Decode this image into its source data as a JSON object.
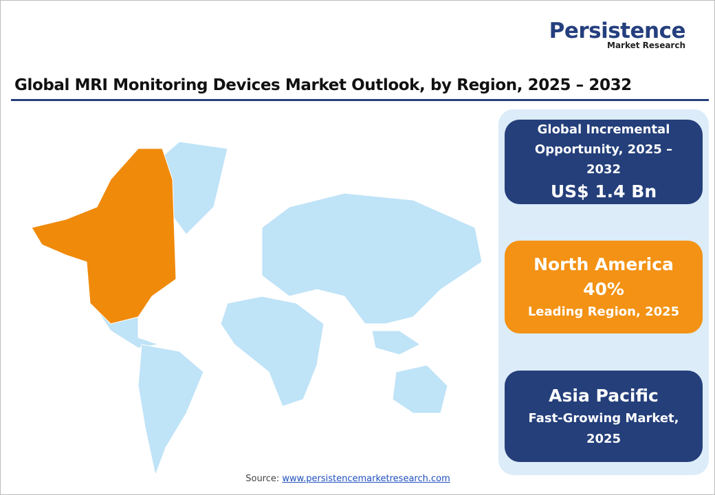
{
  "logo": {
    "name": "Persistence",
    "sub": "Market Research"
  },
  "title": "Global MRI Monitoring Devices Market Outlook, by Region, 2025 – 2032",
  "cards": [
    {
      "heading": "Global Incremental Opportunity, 2025 – 2032",
      "value": "US$ 1.4 Bn"
    },
    {
      "heading": "North America",
      "value": "40%",
      "note": "Leading Region, 2025"
    },
    {
      "heading": "Asia Pacific",
      "note": "Fast-Growing Market, 2025"
    }
  ],
  "source": {
    "label": "Source:",
    "link": "www.persistencemarketresearch.com"
  }
}
